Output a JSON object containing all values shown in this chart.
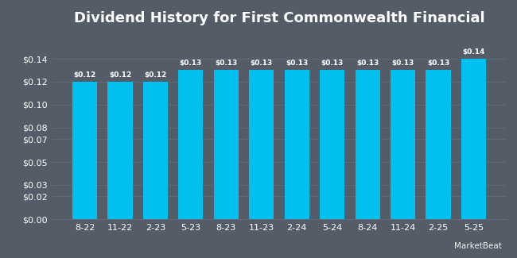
{
  "title": "Dividend History for First Commonwealth Financial",
  "categories": [
    "8-22",
    "11-22",
    "2-23",
    "5-23",
    "8-23",
    "11-23",
    "2-24",
    "5-24",
    "8-24",
    "11-24",
    "2-25",
    "5-25"
  ],
  "values": [
    0.12,
    0.12,
    0.12,
    0.13,
    0.13,
    0.13,
    0.13,
    0.13,
    0.13,
    0.13,
    0.13,
    0.14
  ],
  "bar_color": "#00c0f0",
  "background_color": "#545d67",
  "grid_color": "#636d78",
  "text_color": "#ffffff",
  "title_fontsize": 13,
  "label_fontsize": 8,
  "value_fontsize": 6.5,
  "yticks": [
    0.0,
    0.02,
    0.03,
    0.05,
    0.07,
    0.08,
    0.1,
    0.12,
    0.14
  ],
  "ylim": [
    0,
    0.162
  ],
  "bar_width": 0.7
}
